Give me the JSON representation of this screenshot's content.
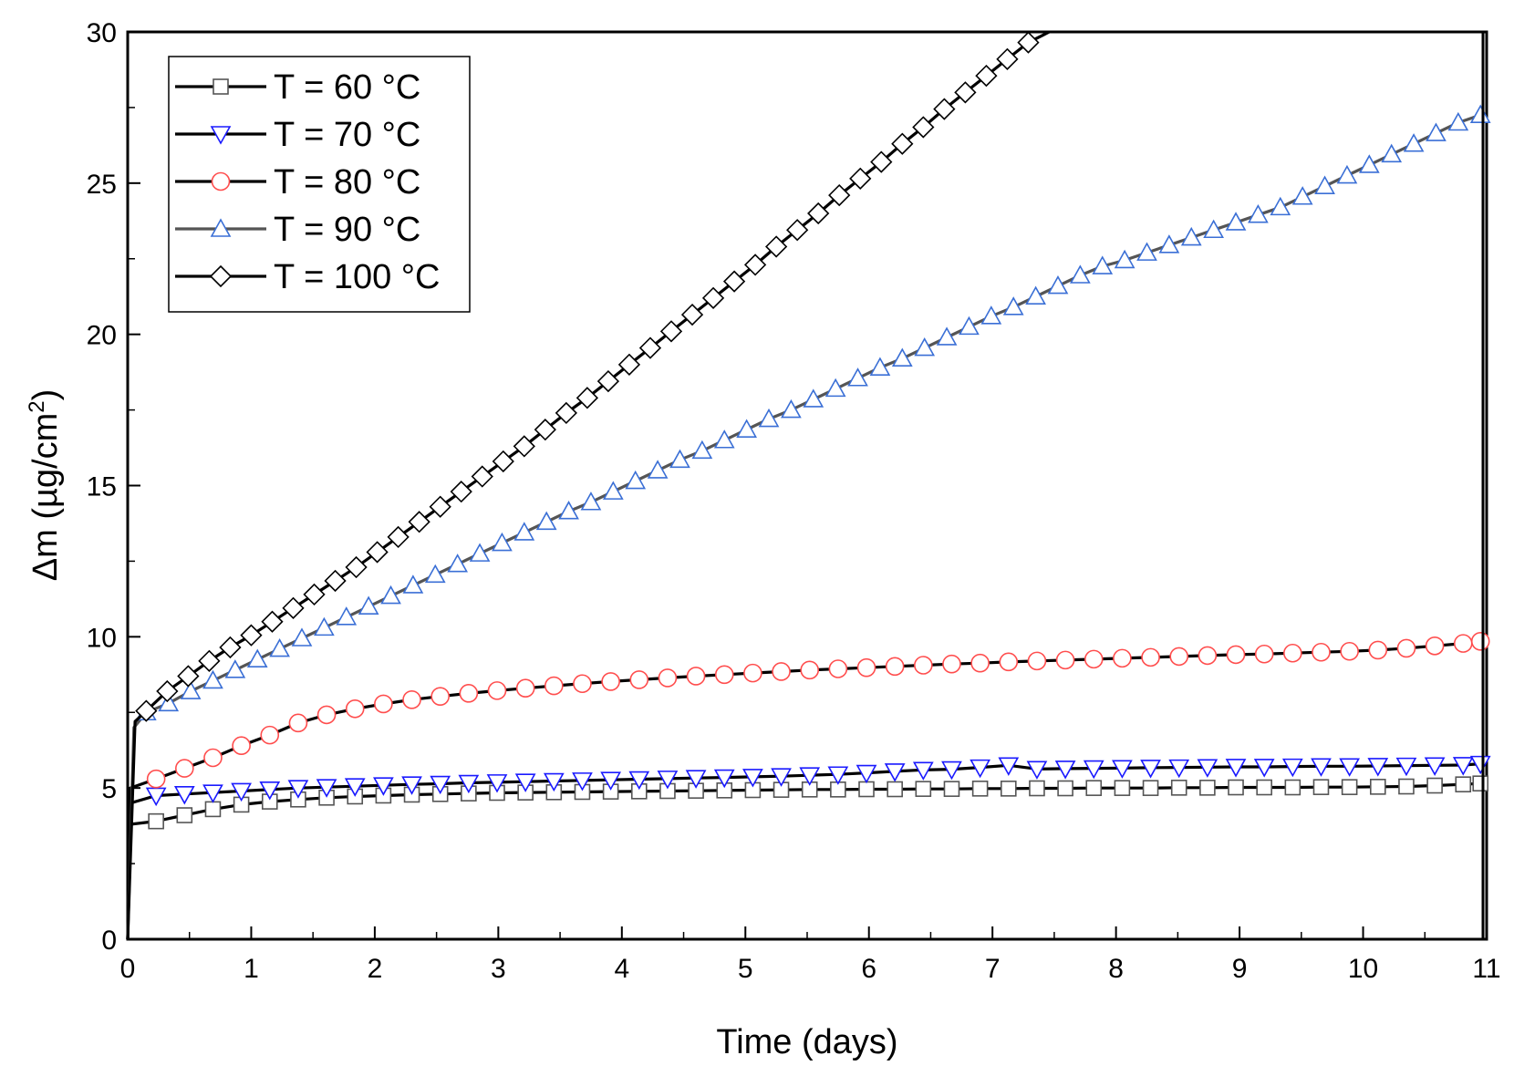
{
  "chart_data": {
    "type": "line",
    "title": "",
    "xlabel": "Time (days)",
    "ylabel": {
      "prefix": "Δm (µg/cm",
      "sup": "2",
      "suffix": ")"
    },
    "xlim": [
      0,
      11
    ],
    "ylim": [
      0,
      30
    ],
    "xticks": [
      0,
      1,
      2,
      3,
      4,
      5,
      6,
      7,
      8,
      9,
      10,
      11
    ],
    "yticks": [
      0,
      5,
      10,
      15,
      20,
      25,
      30
    ],
    "legend_position": "top-left",
    "series": [
      {
        "name": "T = 60 °C",
        "marker": "square",
        "color": "#000000",
        "stroke": "#555555",
        "fill": "#ffffff",
        "initial_jump": {
          "x": 0.02,
          "y": 3.8
        },
        "x": [
          0.23,
          0.46,
          0.69,
          0.92,
          1.15,
          1.38,
          1.61,
          1.84,
          2.07,
          2.3,
          2.53,
          2.76,
          2.99,
          3.22,
          3.45,
          3.68,
          3.91,
          4.14,
          4.37,
          4.6,
          4.83,
          5.06,
          5.29,
          5.52,
          5.75,
          5.98,
          6.21,
          6.44,
          6.67,
          6.9,
          7.13,
          7.36,
          7.59,
          7.82,
          8.05,
          8.28,
          8.51,
          8.74,
          8.97,
          9.2,
          9.43,
          9.66,
          9.89,
          10.12,
          10.35,
          10.58,
          10.81,
          10.95
        ],
        "y": [
          3.9,
          4.1,
          4.3,
          4.45,
          4.55,
          4.62,
          4.68,
          4.72,
          4.75,
          4.78,
          4.8,
          4.82,
          4.84,
          4.85,
          4.86,
          4.87,
          4.88,
          4.89,
          4.9,
          4.91,
          4.92,
          4.93,
          4.94,
          4.95,
          4.95,
          4.96,
          4.96,
          4.97,
          4.97,
          4.98,
          4.98,
          4.99,
          4.99,
          5.0,
          5.0,
          5.0,
          5.01,
          5.01,
          5.02,
          5.02,
          5.02,
          5.03,
          5.03,
          5.04,
          5.05,
          5.08,
          5.12,
          5.15
        ]
      },
      {
        "name": "T = 70 °C",
        "marker": "triangle-down",
        "color": "#000000",
        "stroke": "#1a1aff",
        "fill": "#ffffff",
        "initial_jump": {
          "x": 0.02,
          "y": 4.5
        },
        "x": [
          0.23,
          0.46,
          0.69,
          0.92,
          1.15,
          1.38,
          1.61,
          1.84,
          2.07,
          2.3,
          2.53,
          2.76,
          2.99,
          3.22,
          3.45,
          3.68,
          3.91,
          4.14,
          4.37,
          4.6,
          4.83,
          5.06,
          5.29,
          5.52,
          5.75,
          5.98,
          6.21,
          6.44,
          6.67,
          6.9,
          7.13,
          7.36,
          7.59,
          7.82,
          8.05,
          8.28,
          8.51,
          8.74,
          8.97,
          9.2,
          9.43,
          9.66,
          9.89,
          10.12,
          10.35,
          10.58,
          10.81,
          10.95
        ],
        "y": [
          4.75,
          4.8,
          4.85,
          4.9,
          4.95,
          5.0,
          5.03,
          5.06,
          5.09,
          5.12,
          5.14,
          5.17,
          5.19,
          5.21,
          5.23,
          5.25,
          5.27,
          5.29,
          5.31,
          5.33,
          5.35,
          5.37,
          5.39,
          5.42,
          5.45,
          5.5,
          5.55,
          5.6,
          5.62,
          5.68,
          5.75,
          5.63,
          5.64,
          5.65,
          5.66,
          5.67,
          5.68,
          5.69,
          5.7,
          5.7,
          5.71,
          5.72,
          5.72,
          5.73,
          5.74,
          5.75,
          5.76,
          5.8
        ]
      },
      {
        "name": "T = 80 °C",
        "marker": "circle",
        "color": "#000000",
        "stroke": "#ff4d4d",
        "fill": "#ffffff",
        "initial_jump": {
          "x": 0.02,
          "y": 5.0
        },
        "x": [
          0.23,
          0.46,
          0.69,
          0.92,
          1.15,
          1.38,
          1.61,
          1.84,
          2.07,
          2.3,
          2.53,
          2.76,
          2.99,
          3.22,
          3.45,
          3.68,
          3.91,
          4.14,
          4.37,
          4.6,
          4.83,
          5.06,
          5.29,
          5.52,
          5.75,
          5.98,
          6.21,
          6.44,
          6.67,
          6.9,
          7.13,
          7.36,
          7.59,
          7.82,
          8.05,
          8.28,
          8.51,
          8.74,
          8.97,
          9.2,
          9.43,
          9.66,
          9.89,
          10.12,
          10.35,
          10.58,
          10.81,
          10.95
        ],
        "y": [
          5.3,
          5.65,
          6.0,
          6.4,
          6.75,
          7.15,
          7.42,
          7.62,
          7.78,
          7.92,
          8.03,
          8.13,
          8.22,
          8.3,
          8.38,
          8.45,
          8.52,
          8.58,
          8.64,
          8.7,
          8.75,
          8.8,
          8.85,
          8.9,
          8.94,
          8.98,
          9.02,
          9.06,
          9.1,
          9.13,
          9.17,
          9.2,
          9.23,
          9.26,
          9.29,
          9.32,
          9.35,
          9.38,
          9.41,
          9.43,
          9.46,
          9.49,
          9.52,
          9.56,
          9.62,
          9.7,
          9.78,
          9.85
        ]
      },
      {
        "name": "T = 90 °C",
        "marker": "triangle-up",
        "color": "#555555",
        "stroke": "#3a6fd6",
        "fill": "#ffffff",
        "initial_jump": {
          "x": 0.05,
          "y": 7.0
        },
        "x": [
          0.15,
          0.33,
          0.51,
          0.69,
          0.87,
          1.05,
          1.23,
          1.41,
          1.59,
          1.77,
          1.95,
          2.13,
          2.31,
          2.49,
          2.67,
          2.85,
          3.03,
          3.21,
          3.39,
          3.57,
          3.75,
          3.93,
          4.11,
          4.29,
          4.47,
          4.65,
          4.83,
          5.01,
          5.19,
          5.37,
          5.55,
          5.73,
          5.91,
          6.09,
          6.27,
          6.45,
          6.63,
          6.81,
          6.99,
          7.17,
          7.35,
          7.53,
          7.71,
          7.89,
          8.07,
          8.25,
          8.43,
          8.61,
          8.79,
          8.97,
          9.15,
          9.33,
          9.51,
          9.69,
          9.87,
          10.05,
          10.23,
          10.41,
          10.59,
          10.77,
          10.95
        ],
        "y": [
          7.5,
          7.8,
          8.2,
          8.55,
          8.9,
          9.25,
          9.6,
          9.95,
          10.3,
          10.65,
          11.0,
          11.35,
          11.7,
          12.05,
          12.4,
          12.75,
          13.1,
          13.45,
          13.8,
          14.15,
          14.45,
          14.8,
          15.15,
          15.5,
          15.85,
          16.15,
          16.5,
          16.85,
          17.2,
          17.5,
          17.85,
          18.2,
          18.55,
          18.9,
          19.2,
          19.55,
          19.9,
          20.25,
          20.6,
          20.9,
          21.25,
          21.6,
          21.95,
          22.25,
          22.45,
          22.7,
          22.95,
          23.2,
          23.45,
          23.7,
          23.95,
          24.2,
          24.55,
          24.9,
          25.25,
          25.6,
          25.95,
          26.3,
          26.65,
          27.0,
          27.25
        ]
      },
      {
        "name": "T = 100 °C",
        "marker": "diamond",
        "color": "#000000",
        "stroke": "#000000",
        "fill": "#ffffff",
        "initial_jump": {
          "x": 0.06,
          "y": 7.2
        },
        "x": [
          0.15,
          0.32,
          0.49,
          0.66,
          0.83,
          1.0,
          1.17,
          1.34,
          1.51,
          1.68,
          1.85,
          2.02,
          2.19,
          2.36,
          2.53,
          2.7,
          2.87,
          3.04,
          3.21,
          3.38,
          3.55,
          3.72,
          3.89,
          4.06,
          4.23,
          4.4,
          4.57,
          4.74,
          4.91,
          5.08,
          5.25,
          5.42,
          5.59,
          5.76,
          5.93,
          6.1,
          6.27,
          6.44,
          6.61,
          6.78,
          6.95,
          7.12,
          7.29,
          7.46
        ],
        "y": [
          7.55,
          8.2,
          8.7,
          9.2,
          9.65,
          10.05,
          10.5,
          10.95,
          11.4,
          11.85,
          12.3,
          12.8,
          13.3,
          13.8,
          14.3,
          14.8,
          15.3,
          15.8,
          16.3,
          16.85,
          17.4,
          17.9,
          18.45,
          19.0,
          19.55,
          20.1,
          20.65,
          21.2,
          21.75,
          22.3,
          22.9,
          23.45,
          24.0,
          24.6,
          25.15,
          25.7,
          26.3,
          26.85,
          27.45,
          28.0,
          28.55,
          29.1,
          29.65,
          30.1
        ]
      }
    ]
  }
}
